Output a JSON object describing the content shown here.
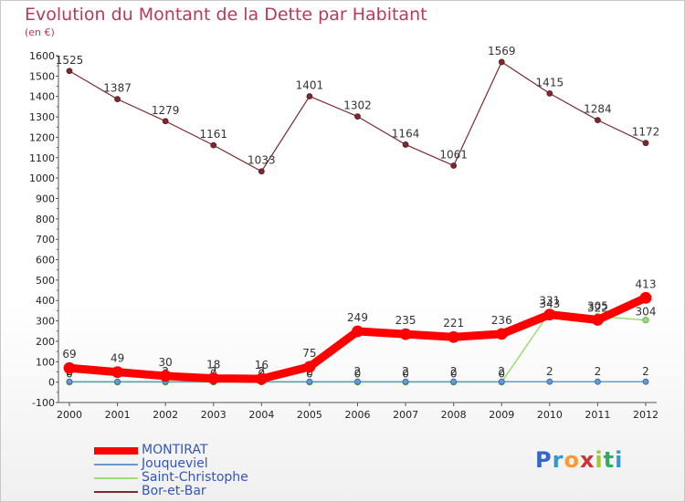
{
  "chart_data": {
    "type": "line",
    "title": "Evolution du Montant de la Dette par Habitant",
    "subtitle": "(en €)",
    "categories": [
      "2000",
      "2001",
      "2002",
      "2003",
      "2004",
      "2005",
      "2006",
      "2007",
      "2008",
      "2009",
      "2010",
      "2011",
      "2012"
    ],
    "ylim": [
      -100,
      1600
    ],
    "yticks": [
      -100,
      0,
      100,
      200,
      300,
      400,
      500,
      600,
      700,
      800,
      900,
      1000,
      1100,
      1200,
      1300,
      1400,
      1500,
      1600
    ],
    "grid": false,
    "legend_position": "bottom-left",
    "series": [
      {
        "name": "Bor-et-Bar",
        "color": "#7a2a2e",
        "values": [
          1525,
          1387,
          1279,
          1161,
          1033,
          1401,
          1302,
          1164,
          1061,
          1569,
          1415,
          1284,
          1172
        ]
      },
      {
        "name": "Saint-Christophe",
        "color": "#99dd77",
        "values": [
          0,
          0,
          0,
          0,
          0,
          0,
          0,
          0,
          0,
          0,
          343,
          322,
          304
        ]
      },
      {
        "name": "Jouqueviel",
        "color": "#6699cc",
        "values": [
          2,
          2,
          2,
          2,
          2,
          2,
          2,
          2,
          2,
          2,
          2,
          2,
          2
        ]
      },
      {
        "name": "MONTIRAT",
        "color": "#ff0000",
        "values": [
          69,
          49,
          30,
          18,
          16,
          75,
          249,
          235,
          221,
          236,
          331,
          305,
          413
        ]
      }
    ],
    "legend_order": [
      "MONTIRAT",
      "Jouqueviel",
      "Saint-Christophe",
      "Bor-et-Bar"
    ]
  },
  "logo": {
    "letters": [
      "P",
      "r",
      "o",
      "x",
      "i",
      "t",
      "i"
    ],
    "colors": [
      "#3366cc",
      "#3399cc",
      "#ff9933",
      "#cc3333",
      "#99cc33",
      "#33aa66",
      "#3399cc"
    ]
  }
}
